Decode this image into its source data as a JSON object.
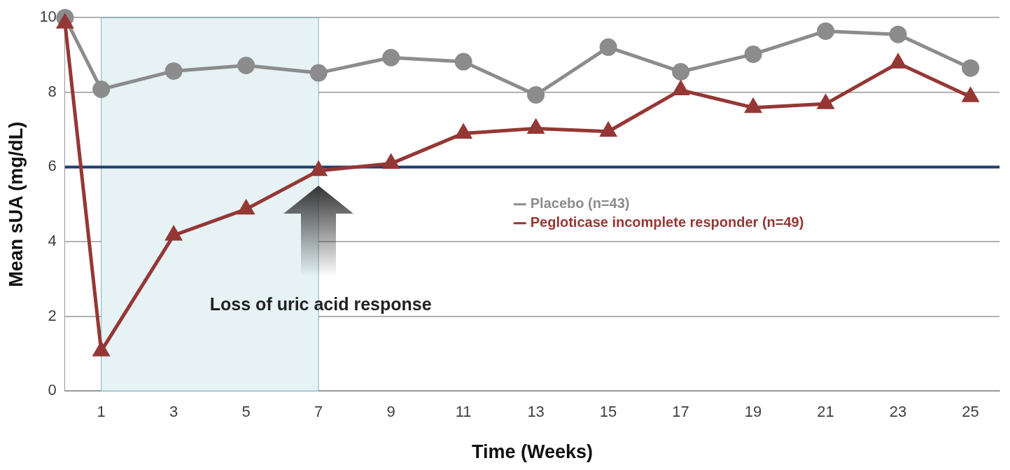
{
  "chart_data": {
    "type": "line",
    "xlabel": "Time (Weeks)",
    "ylabel": "Mean sUA (mg/dL)",
    "xlim": [
      0,
      25.8
    ],
    "xticks": [
      1,
      3,
      5,
      7,
      9,
      11,
      13,
      15,
      17,
      19,
      21,
      23,
      25
    ],
    "ylim": [
      0,
      10
    ],
    "yticks": [
      0,
      2,
      4,
      6,
      8,
      10
    ],
    "x": [
      0,
      1,
      3,
      5,
      7,
      9,
      11,
      13,
      15,
      17,
      19,
      21,
      23,
      25
    ],
    "series": [
      {
        "name": "Placebo (n=43)",
        "color": "#8c8c8c",
        "marker": "circle",
        "values": [
          10,
          8.08,
          8.57,
          8.72,
          8.52,
          8.93,
          8.82,
          7.93,
          9.21,
          8.55,
          9.02,
          9.64,
          9.55,
          8.65
        ]
      },
      {
        "name": "Pegloticase incomplete responder (n=49)",
        "color": "#953735",
        "marker": "triangle",
        "values": [
          9.85,
          1.07,
          4.17,
          4.87,
          5.9,
          6.09,
          6.9,
          7.03,
          6.95,
          8.06,
          7.59,
          7.69,
          8.78,
          7.88
        ]
      }
    ],
    "ref_lines": [
      {
        "axis": "y",
        "value": 6,
        "color": "#1f3d6e"
      }
    ],
    "bands": [
      {
        "axis": "x",
        "from": 1,
        "to": 7,
        "color": "#e6f2f4"
      }
    ],
    "annotations": [
      "Loss of uric acid response"
    ],
    "grid": "y",
    "legend": "center right",
    "line_style": "solid"
  }
}
